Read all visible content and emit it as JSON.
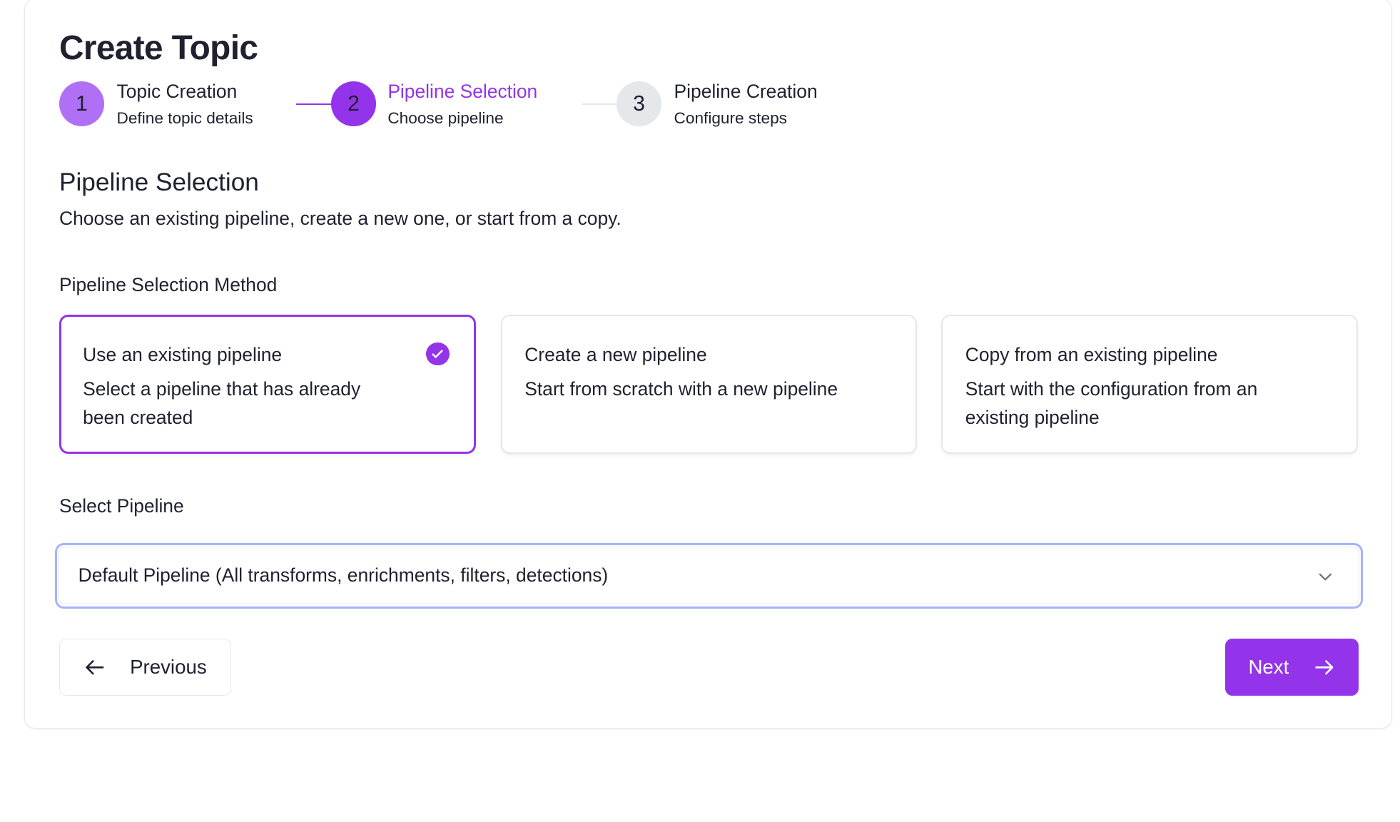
{
  "page_title": "Create Topic",
  "colors": {
    "accent": "#9333ea",
    "accent_light": "#b070f5",
    "inactive": "#e5e7eb",
    "focus_ring": "#a5b4fc"
  },
  "stepper": [
    {
      "number": "1",
      "title": "Topic Creation",
      "subtitle": "Define topic details",
      "state": "completed"
    },
    {
      "number": "2",
      "title": "Pipeline Selection",
      "subtitle": "Choose pipeline",
      "state": "active"
    },
    {
      "number": "3",
      "title": "Pipeline Creation",
      "subtitle": "Configure steps",
      "state": "upcoming"
    }
  ],
  "section": {
    "title": "Pipeline Selection",
    "description": "Choose an existing pipeline, create a new one, or start from a copy."
  },
  "method": {
    "label": "Pipeline Selection Method",
    "options": [
      {
        "title": "Use an existing pipeline",
        "description": "Select a pipeline that has already been created",
        "selected": true,
        "icon": "check-circle-icon"
      },
      {
        "title": "Create a new pipeline",
        "description": "Start from scratch with a new pipeline",
        "selected": false
      },
      {
        "title": "Copy from an existing pipeline",
        "description": "Start with the configuration from an existing pipeline",
        "selected": false
      }
    ]
  },
  "select_pipeline": {
    "label": "Select Pipeline",
    "value": "Default Pipeline (All transforms, enrichments, filters, detections)",
    "icon": "chevron-down-icon"
  },
  "buttons": {
    "previous": "Previous",
    "next": "Next"
  }
}
